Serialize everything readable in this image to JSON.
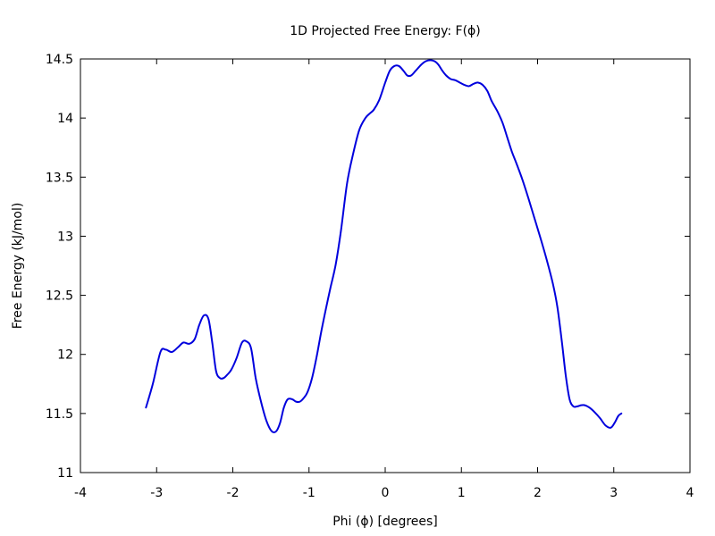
{
  "chart_data": {
    "type": "line",
    "title": "1D Projected Free Energy: F(ϕ)",
    "xlabel": "Phi (ϕ) [degrees]",
    "ylabel": "Free Energy (kJ/mol)",
    "xlim": [
      -4,
      4
    ],
    "ylim": [
      11,
      14.5
    ],
    "xticks": [
      -4,
      -3,
      -2,
      -1,
      0,
      1,
      2,
      3,
      4
    ],
    "yticks": [
      11,
      11.5,
      12,
      12.5,
      13,
      13.5,
      14,
      14.5
    ],
    "xtick_labels": [
      "-4",
      "-3",
      "-2",
      "-1",
      "0",
      "1",
      "2",
      "3",
      "4"
    ],
    "ytick_labels": [
      "11",
      "11.5",
      "12",
      "12.5",
      "13",
      "13.5",
      "14",
      "14.5"
    ],
    "grid": false,
    "legend": false,
    "line_color": "#0000dd",
    "series": [
      {
        "x": [
          -3.14,
          -3.05,
          -2.95,
          -2.88,
          -2.8,
          -2.72,
          -2.65,
          -2.57,
          -2.5,
          -2.44,
          -2.38,
          -2.32,
          -2.27,
          -2.22,
          -2.17,
          -2.12,
          -2.07,
          -2.02,
          -1.95,
          -1.88,
          -1.82,
          -1.76,
          -1.7,
          -1.63,
          -1.56,
          -1.49,
          -1.43,
          -1.38,
          -1.33,
          -1.28,
          -1.22,
          -1.17,
          -1.12,
          -1.07,
          -1.02,
          -0.96,
          -0.9,
          -0.84,
          -0.78,
          -0.72,
          -0.65,
          -0.58,
          -0.5,
          -0.42,
          -0.34,
          -0.26,
          -0.2,
          -0.15,
          -0.08,
          0.0,
          0.06,
          0.12,
          0.18,
          0.24,
          0.29,
          0.34,
          0.4,
          0.47,
          0.53,
          0.59,
          0.65,
          0.7,
          0.75,
          0.8,
          0.86,
          0.92,
          0.98,
          1.04,
          1.1,
          1.16,
          1.22,
          1.28,
          1.34,
          1.4,
          1.47,
          1.54,
          1.6,
          1.66,
          1.72,
          1.8,
          1.88,
          1.96,
          2.04,
          2.12,
          2.2,
          2.26,
          2.32,
          2.37,
          2.42,
          2.47,
          2.52,
          2.57,
          2.62,
          2.68,
          2.75,
          2.82,
          2.89,
          2.96,
          3.01,
          3.06,
          3.1
        ],
        "y": [
          11.55,
          11.75,
          12.02,
          12.04,
          12.02,
          12.06,
          12.1,
          12.09,
          12.13,
          12.25,
          12.33,
          12.3,
          12.1,
          11.86,
          11.8,
          11.8,
          11.83,
          11.87,
          11.97,
          12.1,
          12.11,
          12.05,
          11.8,
          11.6,
          11.44,
          11.35,
          11.35,
          11.42,
          11.55,
          11.62,
          11.62,
          11.6,
          11.6,
          11.63,
          11.68,
          11.8,
          11.98,
          12.19,
          12.38,
          12.56,
          12.76,
          13.05,
          13.45,
          13.7,
          13.9,
          14.0,
          14.04,
          14.07,
          14.15,
          14.3,
          14.4,
          14.44,
          14.44,
          14.4,
          14.36,
          14.36,
          14.4,
          14.45,
          14.48,
          14.49,
          14.48,
          14.45,
          14.4,
          14.36,
          14.33,
          14.32,
          14.3,
          14.28,
          14.27,
          14.29,
          14.3,
          14.28,
          14.23,
          14.14,
          14.06,
          13.96,
          13.84,
          13.72,
          13.62,
          13.48,
          13.32,
          13.15,
          12.98,
          12.8,
          12.6,
          12.4,
          12.1,
          11.82,
          11.62,
          11.56,
          11.56,
          11.57,
          11.57,
          11.55,
          11.51,
          11.46,
          11.4,
          11.38,
          11.42,
          11.48,
          11.5
        ]
      }
    ]
  }
}
